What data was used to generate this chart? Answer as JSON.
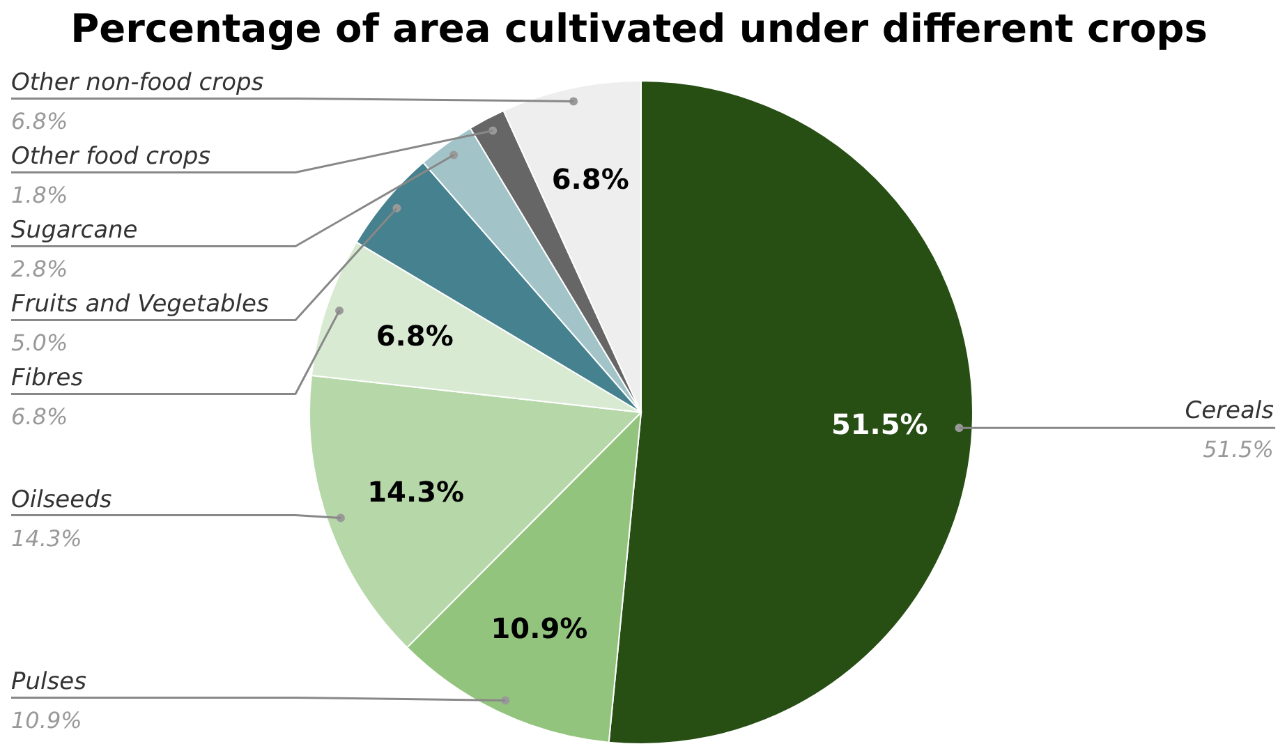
{
  "chart_data": {
    "type": "pie",
    "title": "Percentage of area cultivated under different crops",
    "categories": [
      "Cereals",
      "Pulses",
      "Oilseeds",
      "Fibres",
      "Fruits and Vegetables",
      "Sugarcane",
      "Other food crops",
      "Other non-food crops"
    ],
    "values": [
      51.5,
      10.9,
      14.3,
      6.8,
      5.0,
      2.8,
      1.8,
      6.8
    ],
    "colors": [
      "#274e13",
      "#93c47d",
      "#b6d7a8",
      "#d9ead3",
      "#45818e",
      "#a2c4c9",
      "#666666",
      "#eeeeee"
    ],
    "value_labels": [
      "51.5%",
      "10.9%",
      "14.3%",
      "6.8%",
      "5.0%",
      "2.8%",
      "1.8%",
      "6.8%"
    ],
    "annotations": [
      {
        "text": "51.5%",
        "x": "Cereals"
      },
      {
        "text": "10.9%",
        "x": "Pulses"
      },
      {
        "text": "14.3%",
        "x": "Oilseeds"
      },
      {
        "text": "6.8%",
        "x": "Fibres"
      },
      {
        "text": "6.8%",
        "x": "Other non-food crops"
      }
    ]
  }
}
